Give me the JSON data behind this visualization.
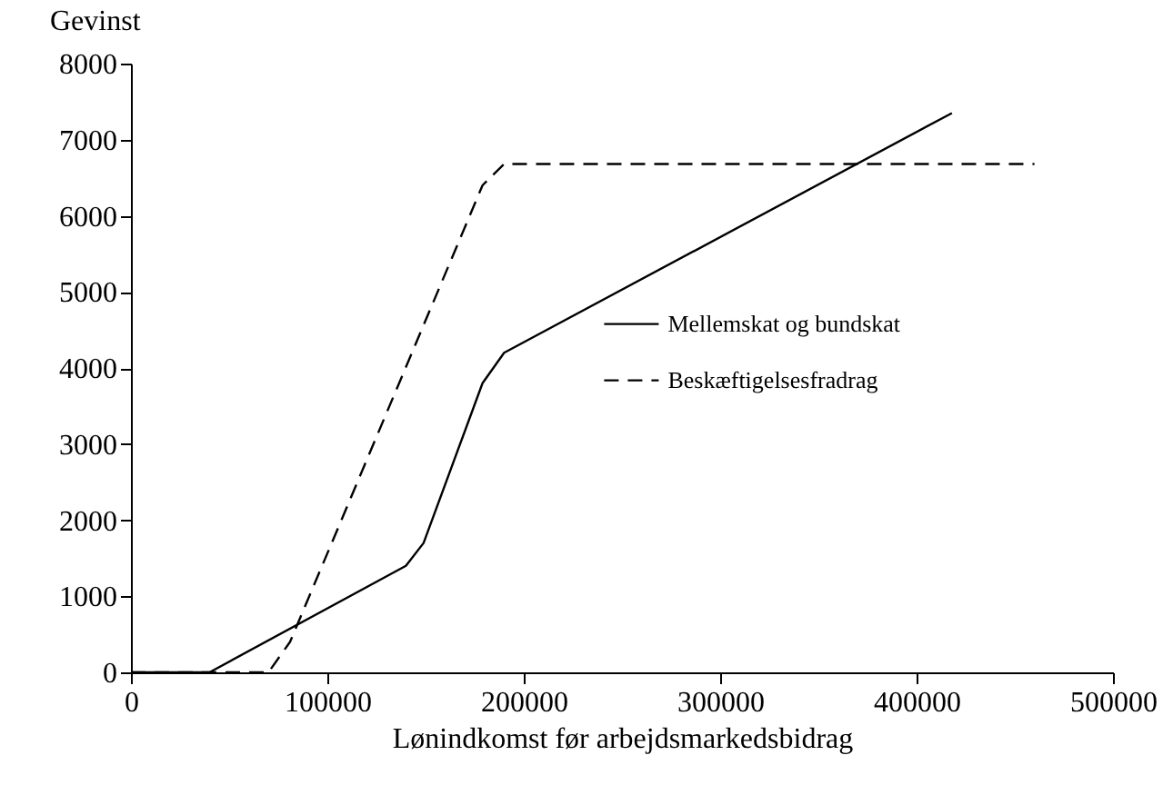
{
  "chart_data": {
    "type": "line",
    "xlabel": "Lønindkomst før arbejdsmarkedsbidrag",
    "ylabel": "Gevinst",
    "xlim": [
      0,
      500000
    ],
    "xticks": [
      0,
      100000,
      200000,
      300000,
      400000,
      500000
    ],
    "ylim": [
      0,
      8000
    ],
    "yticks": [
      0,
      1000,
      2000,
      3000,
      4000,
      5000,
      6000,
      7000,
      8000
    ],
    "grid": false,
    "legend": "right",
    "series": [
      {
        "name": "Mellemskat og bundskat",
        "color": "#000000",
        "line_style": "solid",
        "x": [
          0,
          40000,
          140000,
          149000,
          179000,
          190000,
          418000
        ],
        "values": [
          0,
          0,
          1400,
          1700,
          3800,
          4200,
          7350
        ]
      },
      {
        "name": "Beskæftigelsesfradrag",
        "color": "#000000",
        "line_style": "dashed",
        "x": [
          0,
          70000,
          81000,
          179000,
          190000,
          460000
        ],
        "values": [
          0,
          0,
          400,
          6400,
          6680,
          6680
        ]
      }
    ]
  }
}
